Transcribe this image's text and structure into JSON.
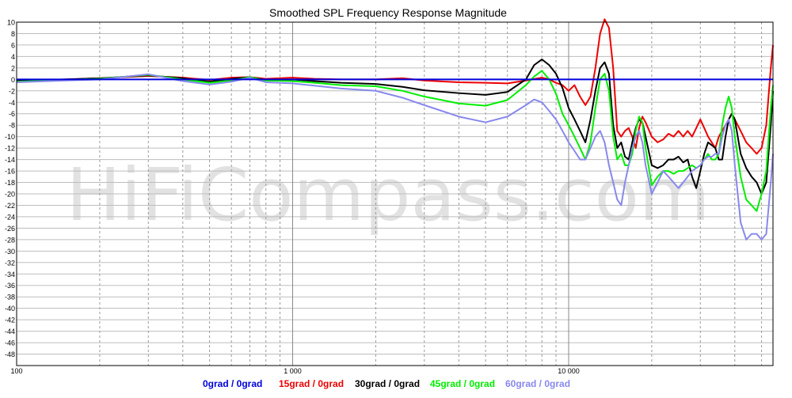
{
  "chart_data": {
    "type": "line",
    "title": "Smoothed SPL Frequency Response Magnitude",
    "x_scale": "log",
    "xlim": [
      100,
      55000
    ],
    "ylim": [
      -50,
      10
    ],
    "yticks": [
      10,
      8,
      6,
      4,
      2,
      0,
      -2,
      -4,
      -6,
      -8,
      -10,
      -12,
      -14,
      -16,
      -18,
      -20,
      -22,
      -24,
      -26,
      -28,
      -30,
      -32,
      -34,
      -36,
      -38,
      -40,
      -42,
      -44,
      -46,
      -48
    ],
    "xtick_labels": [
      {
        "value": 100,
        "label": "100"
      },
      {
        "value": 1000,
        "label": "1 000"
      },
      {
        "value": 10000,
        "label": "10 000"
      }
    ],
    "grid": true,
    "background": "#ffffff",
    "watermark": "HiFiCompass.com",
    "legend_position": "bottom",
    "reference_line": {
      "y": 0,
      "color": "#0000dd"
    },
    "series": [
      {
        "name": "15grad / 0grad",
        "color": "#ee0000",
        "points": [
          [
            100,
            -0.2
          ],
          [
            150,
            0
          ],
          [
            200,
            0.2
          ],
          [
            300,
            0.6
          ],
          [
            400,
            0.3
          ],
          [
            500,
            -0.1
          ],
          [
            600,
            0.3
          ],
          [
            700,
            0.4
          ],
          [
            800,
            0.1
          ],
          [
            1000,
            0.3
          ],
          [
            1200,
            0.1
          ],
          [
            1500,
            0
          ],
          [
            2000,
            0
          ],
          [
            2500,
            0.2
          ],
          [
            3000,
            -0.2
          ],
          [
            4000,
            -0.5
          ],
          [
            5000,
            -0.6
          ],
          [
            6000,
            -0.7
          ],
          [
            7000,
            -0.2
          ],
          [
            8000,
            0.3
          ],
          [
            8500,
            0
          ],
          [
            9000,
            -0.6
          ],
          [
            9500,
            -1
          ],
          [
            10000,
            -2
          ],
          [
            10500,
            -1
          ],
          [
            11000,
            -3
          ],
          [
            11500,
            -4.5
          ],
          [
            12000,
            -3
          ],
          [
            12500,
            2
          ],
          [
            13000,
            8
          ],
          [
            13500,
            10.5
          ],
          [
            14000,
            9
          ],
          [
            14500,
            2
          ],
          [
            15000,
            -9
          ],
          [
            15500,
            -10
          ],
          [
            16000,
            -9
          ],
          [
            16500,
            -8.5
          ],
          [
            17000,
            -10
          ],
          [
            17500,
            -12
          ],
          [
            18000,
            -8.5
          ],
          [
            18500,
            -6.5
          ],
          [
            19000,
            -7.5
          ],
          [
            20000,
            -10
          ],
          [
            21000,
            -11
          ],
          [
            22000,
            -10.5
          ],
          [
            23000,
            -9.5
          ],
          [
            24000,
            -10
          ],
          [
            25000,
            -9
          ],
          [
            26000,
            -10
          ],
          [
            27000,
            -9
          ],
          [
            28000,
            -10
          ],
          [
            29000,
            -8.5
          ],
          [
            30000,
            -7
          ],
          [
            31000,
            -8.5
          ],
          [
            32000,
            -10
          ],
          [
            33000,
            -11
          ],
          [
            34000,
            -12
          ],
          [
            35000,
            -10
          ],
          [
            36000,
            -9
          ],
          [
            37000,
            -8
          ],
          [
            38000,
            -7
          ],
          [
            39000,
            -6
          ],
          [
            40000,
            -7
          ],
          [
            42000,
            -9
          ],
          [
            44000,
            -11
          ],
          [
            46000,
            -12
          ],
          [
            48000,
            -13
          ],
          [
            50000,
            -12
          ],
          [
            52000,
            -8
          ],
          [
            54000,
            2
          ],
          [
            55000,
            6
          ]
        ]
      },
      {
        "name": "30grad / 0grad",
        "color": "#000000",
        "points": [
          [
            100,
            -0.2
          ],
          [
            150,
            0
          ],
          [
            200,
            0.2
          ],
          [
            300,
            0.7
          ],
          [
            400,
            0.2
          ],
          [
            500,
            -0.4
          ],
          [
            600,
            0.1
          ],
          [
            700,
            0.4
          ],
          [
            800,
            -0.1
          ],
          [
            1000,
            0
          ],
          [
            1200,
            -0.3
          ],
          [
            1500,
            -0.6
          ],
          [
            2000,
            -0.8
          ],
          [
            2500,
            -1.3
          ],
          [
            3000,
            -1.9
          ],
          [
            4000,
            -2.4
          ],
          [
            5000,
            -2.7
          ],
          [
            6000,
            -2.2
          ],
          [
            7000,
            0
          ],
          [
            7500,
            2.5
          ],
          [
            8000,
            3.5
          ],
          [
            8500,
            2.5
          ],
          [
            9000,
            1
          ],
          [
            9500,
            -1.5
          ],
          [
            10000,
            -5
          ],
          [
            10500,
            -7
          ],
          [
            11000,
            -9
          ],
          [
            11500,
            -11
          ],
          [
            12000,
            -7
          ],
          [
            12500,
            -2
          ],
          [
            13000,
            2
          ],
          [
            13500,
            3
          ],
          [
            14000,
            1
          ],
          [
            14500,
            -8
          ],
          [
            15000,
            -12
          ],
          [
            15500,
            -11
          ],
          [
            16000,
            -13.5
          ],
          [
            16500,
            -14
          ],
          [
            17000,
            -11
          ],
          [
            17500,
            -8.5
          ],
          [
            18000,
            -7
          ],
          [
            18500,
            -7.5
          ],
          [
            19000,
            -10
          ],
          [
            20000,
            -15
          ],
          [
            21000,
            -15.5
          ],
          [
            22000,
            -15
          ],
          [
            23000,
            -14
          ],
          [
            24000,
            -14
          ],
          [
            25000,
            -13.5
          ],
          [
            26000,
            -14.5
          ],
          [
            27000,
            -14
          ],
          [
            28000,
            -17
          ],
          [
            29000,
            -19
          ],
          [
            30000,
            -16
          ],
          [
            31000,
            -13
          ],
          [
            32000,
            -11
          ],
          [
            33000,
            -11.5
          ],
          [
            34000,
            -12
          ],
          [
            35000,
            -14
          ],
          [
            36000,
            -14
          ],
          [
            37000,
            -10
          ],
          [
            38000,
            -7
          ],
          [
            39000,
            -6
          ],
          [
            40000,
            -7
          ],
          [
            42000,
            -13
          ],
          [
            44000,
            -15.5
          ],
          [
            46000,
            -17
          ],
          [
            48000,
            -18
          ],
          [
            50000,
            -20
          ],
          [
            52000,
            -18
          ],
          [
            54000,
            -8
          ],
          [
            55000,
            -2
          ]
        ]
      },
      {
        "name": "45grad / 0grad",
        "color": "#00ee00",
        "points": [
          [
            100,
            -0.4
          ],
          [
            150,
            -0.1
          ],
          [
            200,
            0.1
          ],
          [
            300,
            0.8
          ],
          [
            400,
            0
          ],
          [
            500,
            -0.6
          ],
          [
            600,
            -0.2
          ],
          [
            700,
            0.4
          ],
          [
            800,
            -0.2
          ],
          [
            1000,
            -0.3
          ],
          [
            1200,
            -0.6
          ],
          [
            1500,
            -1
          ],
          [
            2000,
            -1.2
          ],
          [
            2500,
            -2
          ],
          [
            3000,
            -3
          ],
          [
            4000,
            -4.2
          ],
          [
            5000,
            -4.6
          ],
          [
            6000,
            -3.6
          ],
          [
            7000,
            -1
          ],
          [
            7500,
            0.5
          ],
          [
            8000,
            1.5
          ],
          [
            8500,
            0
          ],
          [
            9000,
            -2.5
          ],
          [
            9500,
            -6
          ],
          [
            10000,
            -8
          ],
          [
            10500,
            -10
          ],
          [
            11000,
            -12
          ],
          [
            11500,
            -14
          ],
          [
            12000,
            -11
          ],
          [
            12500,
            -5
          ],
          [
            13000,
            0
          ],
          [
            13500,
            1
          ],
          [
            14000,
            -2
          ],
          [
            14500,
            -10
          ],
          [
            15000,
            -14
          ],
          [
            15500,
            -13
          ],
          [
            16000,
            -15
          ],
          [
            16500,
            -15
          ],
          [
            17000,
            -13
          ],
          [
            17500,
            -9
          ],
          [
            18000,
            -6.5
          ],
          [
            18500,
            -7.5
          ],
          [
            19000,
            -12
          ],
          [
            20000,
            -18.5
          ],
          [
            21000,
            -17
          ],
          [
            22000,
            -16
          ],
          [
            23000,
            -16
          ],
          [
            24000,
            -16.5
          ],
          [
            25000,
            -16
          ],
          [
            26000,
            -16
          ],
          [
            27000,
            -15.5
          ],
          [
            28000,
            -15
          ],
          [
            29000,
            -15.5
          ],
          [
            30000,
            -15
          ],
          [
            31000,
            -14
          ],
          [
            32000,
            -13
          ],
          [
            33000,
            -14
          ],
          [
            34000,
            -14
          ],
          [
            35000,
            -13
          ],
          [
            36000,
            -8
          ],
          [
            37000,
            -5
          ],
          [
            38000,
            -3
          ],
          [
            39000,
            -5
          ],
          [
            40000,
            -10
          ],
          [
            42000,
            -17
          ],
          [
            44000,
            -21
          ],
          [
            46000,
            -22
          ],
          [
            48000,
            -23
          ],
          [
            50000,
            -20
          ],
          [
            52000,
            -16
          ],
          [
            54000,
            -5
          ],
          [
            55000,
            -1
          ]
        ]
      },
      {
        "name": "60grad / 0grad",
        "color": "#8888ee",
        "points": [
          [
            100,
            -0.5
          ],
          [
            150,
            -0.2
          ],
          [
            200,
            0
          ],
          [
            300,
            0.9
          ],
          [
            400,
            -0.3
          ],
          [
            500,
            -0.9
          ],
          [
            600,
            -0.4
          ],
          [
            700,
            0.3
          ],
          [
            800,
            -0.5
          ],
          [
            1000,
            -0.7
          ],
          [
            1200,
            -1.1
          ],
          [
            1500,
            -1.6
          ],
          [
            2000,
            -2
          ],
          [
            2500,
            -3.2
          ],
          [
            3000,
            -4.5
          ],
          [
            4000,
            -6.5
          ],
          [
            5000,
            -7.5
          ],
          [
            6000,
            -6.5
          ],
          [
            7000,
            -4.5
          ],
          [
            7500,
            -3.5
          ],
          [
            8000,
            -4
          ],
          [
            8500,
            -5.5
          ],
          [
            9000,
            -7
          ],
          [
            9500,
            -9
          ],
          [
            10000,
            -11
          ],
          [
            10500,
            -12.5
          ],
          [
            11000,
            -14
          ],
          [
            11500,
            -14
          ],
          [
            12000,
            -12
          ],
          [
            12500,
            -10
          ],
          [
            13000,
            -9
          ],
          [
            13500,
            -11
          ],
          [
            14000,
            -15
          ],
          [
            14500,
            -18
          ],
          [
            15000,
            -21
          ],
          [
            15500,
            -22
          ],
          [
            16000,
            -18
          ],
          [
            16500,
            -15
          ],
          [
            17000,
            -12
          ],
          [
            17500,
            -10
          ],
          [
            18000,
            -9
          ],
          [
            18500,
            -11
          ],
          [
            19000,
            -15
          ],
          [
            20000,
            -20
          ],
          [
            21000,
            -18
          ],
          [
            22000,
            -16
          ],
          [
            23000,
            -17
          ],
          [
            24000,
            -18
          ],
          [
            25000,
            -19
          ],
          [
            26000,
            -18
          ],
          [
            27000,
            -17
          ],
          [
            28000,
            -16
          ],
          [
            29000,
            -15.5
          ],
          [
            30000,
            -15
          ],
          [
            31000,
            -14
          ],
          [
            32000,
            -13.5
          ],
          [
            33000,
            -13.5
          ],
          [
            34000,
            -13
          ],
          [
            35000,
            -13
          ],
          [
            36000,
            -10
          ],
          [
            37000,
            -8
          ],
          [
            38000,
            -7
          ],
          [
            39000,
            -9
          ],
          [
            40000,
            -15
          ],
          [
            42000,
            -25
          ],
          [
            44000,
            -28
          ],
          [
            46000,
            -27
          ],
          [
            48000,
            -27
          ],
          [
            50000,
            -28
          ],
          [
            52000,
            -27
          ],
          [
            54000,
            -18
          ],
          [
            55000,
            -13
          ]
        ]
      },
      {
        "name": "0grad / 0grad",
        "color": "#0000dd",
        "points": [
          [
            100,
            0
          ],
          [
            55000,
            0
          ]
        ]
      }
    ]
  }
}
